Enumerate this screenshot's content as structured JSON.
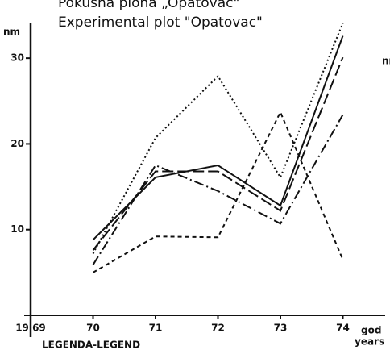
{
  "chart_data": {
    "type": "line",
    "title": "Pokusna ploha „Opatovac\"",
    "subtitle": "Experimental plot \"Opatovac\"",
    "y_label": "nm",
    "y_label_right": "nm",
    "x_label": "god",
    "x_label_2": "years",
    "legend_title": "LEGENDA-LEGEND",
    "x": [
      1970,
      1971,
      1972,
      1973,
      1974
    ],
    "xlim": [
      1969,
      1974.6
    ],
    "xticks": [
      {
        "value": 1969,
        "label": "19 69"
      },
      {
        "value": 1970,
        "label": "70"
      },
      {
        "value": 1971,
        "label": "71"
      },
      {
        "value": 1972,
        "label": "72"
      },
      {
        "value": 1973,
        "label": "73"
      },
      {
        "value": 1974,
        "label": "74"
      }
    ],
    "ylim": [
      0,
      35
    ],
    "yticks": [
      10,
      20,
      30
    ],
    "series": [
      {
        "color": "#111",
        "dash": "dotted",
        "values": [
          7.2,
          20.7,
          27.9,
          16.1,
          34.1
        ]
      },
      {
        "color": "#111",
        "dash": "short-dash",
        "values": [
          5.0,
          9.2,
          9.1,
          23.7,
          6.5
        ]
      },
      {
        "color": "#111",
        "dash": "solid",
        "values": [
          8.8,
          16.1,
          17.5,
          12.8,
          32.6
        ]
      },
      {
        "color": "#111",
        "dash": "dash-dot",
        "values": [
          5.9,
          17.5,
          14.5,
          10.7,
          23.4
        ]
      },
      {
        "color": "#111",
        "dash": "long-dash",
        "values": [
          7.6,
          16.8,
          16.8,
          12.2,
          30.1
        ]
      }
    ]
  }
}
